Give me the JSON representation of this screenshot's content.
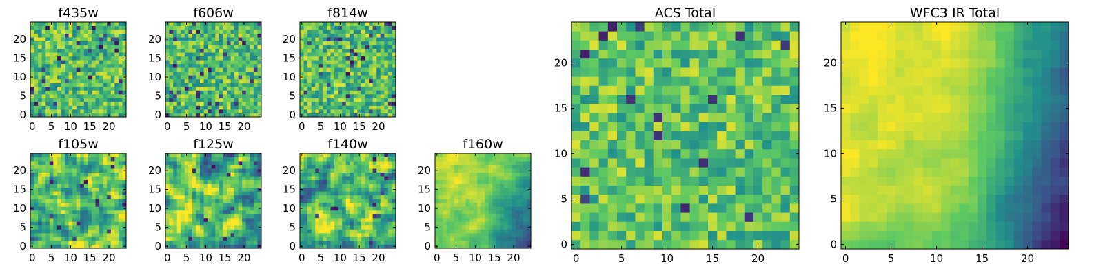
{
  "figure": {
    "type": "image-grid",
    "colormap": "viridis",
    "colormap_stops": [
      "#440154",
      "#3b528b",
      "#21918c",
      "#5ec962",
      "#fde725"
    ]
  },
  "chart_data": [
    {
      "type": "heatmap",
      "title": "f435w",
      "xlim": [
        0,
        24
      ],
      "ylim": [
        0,
        24
      ],
      "xticks": [
        0,
        5,
        10,
        15,
        20
      ],
      "yticks": [
        0,
        5,
        10,
        15,
        20
      ],
      "seed": 11,
      "pattern": "noise"
    },
    {
      "type": "heatmap",
      "title": "f606w",
      "xlim": [
        0,
        24
      ],
      "ylim": [
        0,
        24
      ],
      "xticks": [
        0,
        5,
        10,
        15,
        20
      ],
      "yticks": [
        0,
        5,
        10,
        15,
        20
      ],
      "seed": 23,
      "pattern": "noise"
    },
    {
      "type": "heatmap",
      "title": "f814w",
      "xlim": [
        0,
        24
      ],
      "ylim": [
        0,
        24
      ],
      "xticks": [
        0,
        5,
        10,
        15,
        20
      ],
      "yticks": [
        0,
        5,
        10,
        15,
        20
      ],
      "seed": 37,
      "pattern": "noise"
    },
    {
      "type": "heatmap",
      "title": "f105w",
      "xlim": [
        0,
        24
      ],
      "ylim": [
        0,
        24
      ],
      "xticks": [
        0,
        5,
        10,
        15,
        20
      ],
      "yticks": [
        0,
        5,
        10,
        15,
        20
      ],
      "seed": 41,
      "pattern": "smooth"
    },
    {
      "type": "heatmap",
      "title": "f125w",
      "xlim": [
        0,
        24
      ],
      "ylim": [
        0,
        24
      ],
      "xticks": [
        0,
        5,
        10,
        15,
        20
      ],
      "yticks": [
        0,
        5,
        10,
        15,
        20
      ],
      "seed": 53,
      "pattern": "smooth"
    },
    {
      "type": "heatmap",
      "title": "f140w",
      "xlim": [
        0,
        24
      ],
      "ylim": [
        0,
        24
      ],
      "xticks": [
        0,
        5,
        10,
        15,
        20
      ],
      "yticks": [
        0,
        5,
        10,
        15,
        20
      ],
      "seed": 67,
      "pattern": "smooth"
    },
    {
      "type": "heatmap",
      "title": "f160w",
      "xlim": [
        0,
        24
      ],
      "ylim": [
        0,
        24
      ],
      "xticks": [
        0,
        5,
        10,
        15,
        20
      ],
      "yticks": [
        0,
        5,
        10,
        15,
        20
      ],
      "seed": 71,
      "pattern": "gradient"
    },
    {
      "type": "heatmap",
      "title": "ACS Total",
      "xlim": [
        0,
        24
      ],
      "ylim": [
        0,
        24
      ],
      "xticks": [
        0,
        5,
        10,
        15,
        20
      ],
      "yticks": [
        0,
        5,
        10,
        15,
        20
      ],
      "seed": 83,
      "pattern": "noise-bright"
    },
    {
      "type": "heatmap",
      "title": "WFC3 IR Total",
      "xlim": [
        0,
        24
      ],
      "ylim": [
        0,
        24
      ],
      "xticks": [
        0,
        5,
        10,
        15,
        20
      ],
      "yticks": [
        0,
        5,
        10,
        15,
        20
      ],
      "seed": 97,
      "pattern": "gradient-strong"
    }
  ]
}
